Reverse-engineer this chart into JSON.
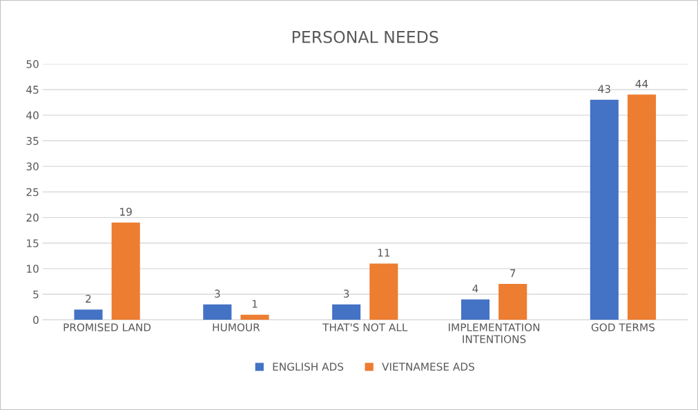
{
  "chart_data": {
    "type": "bar",
    "title": "PERSONAL NEEDS",
    "categories": [
      "PROMISED LAND",
      "HUMOUR",
      "THAT'S NOT ALL",
      "IMPLEMENTATION INTENTIONS",
      "GOD TERMS"
    ],
    "series": [
      {
        "name": "ENGLISH ADS",
        "color": "#4472c4",
        "values": [
          2,
          3,
          3,
          4,
          43
        ]
      },
      {
        "name": "VIETNAMESE ADS",
        "color": "#ed7d31",
        "values": [
          19,
          1,
          11,
          7,
          44
        ]
      }
    ],
    "ylim": [
      0,
      50
    ],
    "yticks": [
      0,
      5,
      10,
      15,
      20,
      25,
      30,
      35,
      40,
      45,
      50
    ],
    "grid": "y",
    "legend": "bottom",
    "data_labels": true
  }
}
